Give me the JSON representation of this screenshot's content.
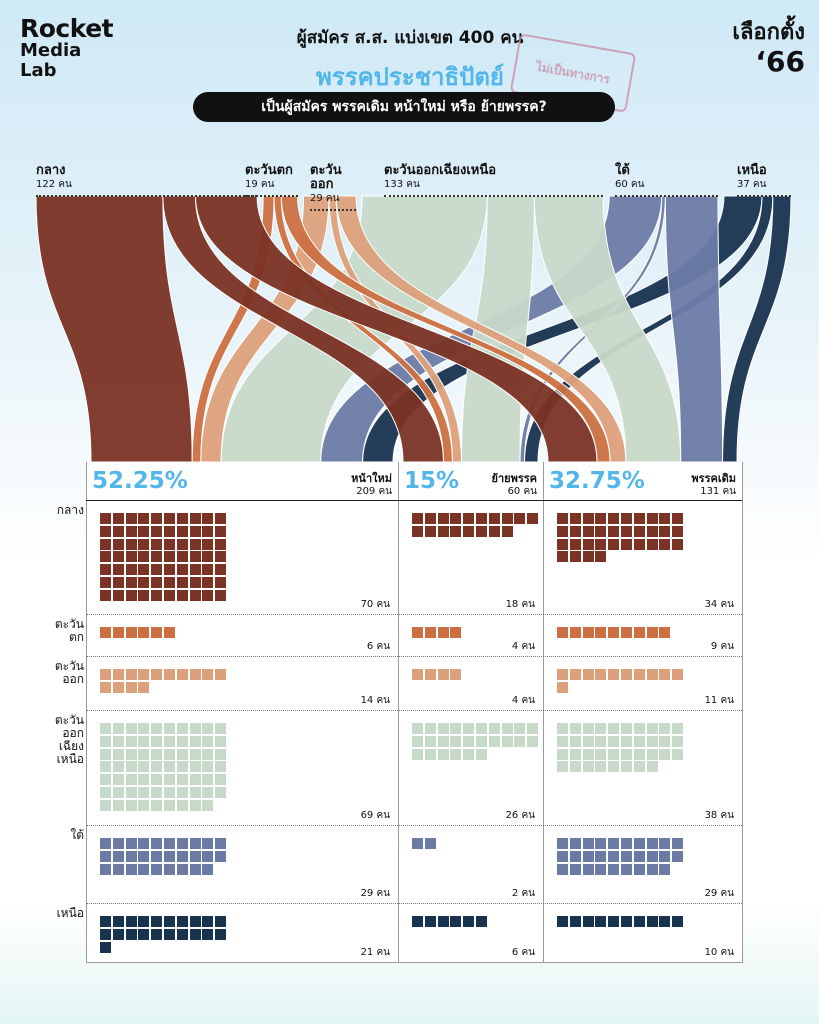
{
  "logo": {
    "line1": "Rocket",
    "line2": "Media",
    "line3": "Lab"
  },
  "brand": {
    "line1": "เลือกตั้ง",
    "line2": "‘66"
  },
  "header": {
    "subtitle": "ผู้สมัคร ส.ส. แบ่งเขต 400 คน",
    "party": "พรรคประชาธิปัตย์",
    "stamp": "ไม่เป็นทางการ",
    "question": "เป็นผู้สมัคร พรรคเดิม หน้าใหม่ หรือ ย้ายพรรค?"
  },
  "colors": {
    "กลาง": "#7a3324",
    "ตะวันตก": "#cc7042",
    "ตะวันออก": "#dda07c",
    "ตะวันออกเฉียงเหนือ": "#c7d9c9",
    "ใต้": "#6c7ba6",
    "เหนือ": "#18334f",
    "accent": "#52b6ea"
  },
  "chart_data": {
    "type": "sankey-waffle",
    "total": 400,
    "unit": "คน",
    "regions": [
      {
        "name": "กลาง",
        "count_label": "122 คน",
        "label": "กลาง",
        "values": [
          70,
          18,
          34
        ],
        "count_labels": [
          "70 คน",
          "18 คน",
          "34 คน"
        ]
      },
      {
        "name": "ตะวันตก",
        "count_label": "19 คน",
        "label": "ตะวัน\nตก",
        "values": [
          6,
          4,
          9
        ],
        "count_labels": [
          "6 คน",
          "4 คน",
          "9 คน"
        ]
      },
      {
        "name": "ตะวันออก",
        "count_label": "29 คน",
        "label": "ตะวัน\nออก",
        "values": [
          14,
          4,
          11
        ],
        "count_labels": [
          "14 คน",
          "4 คน",
          "11 คน"
        ]
      },
      {
        "name": "ตะวันออกเฉียงเหนือ",
        "count_label": "133 คน",
        "label": "ตะวัน\nออก\nเฉียง\nเหนือ",
        "values": [
          69,
          26,
          38
        ],
        "count_labels": [
          "69 คน",
          "26 คน",
          "38 คน"
        ]
      },
      {
        "name": "ใต้",
        "count_label": "60 คน",
        "label": "ใต้",
        "values": [
          29,
          2,
          29
        ],
        "count_labels": [
          "29 คน",
          "2 คน",
          "29 คน"
        ]
      },
      {
        "name": "เหนือ",
        "count_label": "37 คน",
        "label": "เหนือ",
        "values": [
          21,
          6,
          10
        ],
        "count_labels": [
          "21 คน",
          "6 คน",
          "10 คน"
        ]
      }
    ],
    "categories": [
      {
        "name": "หน้าใหม่",
        "count_label": "209 คน",
        "percent": "52.25%"
      },
      {
        "name": "ย้ายพรรค",
        "count_label": "60 คน",
        "percent": "15%"
      },
      {
        "name": "พรรคเดิม",
        "count_label": "131 คน",
        "percent": "32.75%"
      }
    ]
  }
}
